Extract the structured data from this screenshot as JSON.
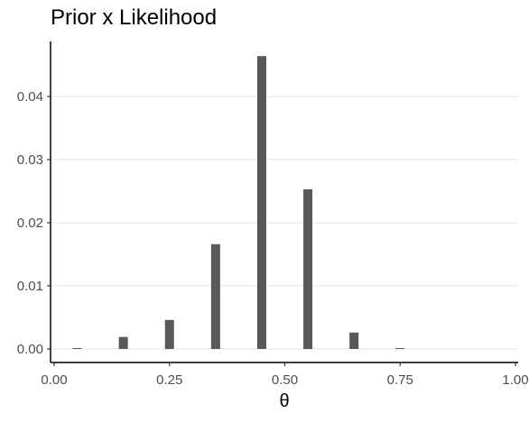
{
  "chart_data": {
    "type": "bar",
    "title": "Prior x Likelihood",
    "xlabel": "θ",
    "ylabel": "",
    "x": [
      0.05,
      0.15,
      0.25,
      0.35,
      0.45,
      0.55,
      0.65,
      0.75
    ],
    "values": [
      5e-05,
      0.0019,
      0.0046,
      0.0166,
      0.0464,
      0.0253,
      0.0026,
      5e-05
    ],
    "xlim": [
      0,
      1
    ],
    "ylim": [
      0,
      0.048
    ],
    "xticks": [
      0,
      0.25,
      0.5,
      0.75,
      1
    ],
    "xtick_labels": [
      "0.00",
      "0.25",
      "0.50",
      "0.75",
      "1.00"
    ],
    "yticks": [
      0,
      0.01,
      0.02,
      0.03,
      0.04
    ],
    "ytick_labels": [
      "0.00",
      "0.01",
      "0.02",
      "0.03",
      "0.04"
    ],
    "grid": "horizontal",
    "colors": {
      "bar": "#595959",
      "grid": "#ebebeb",
      "axis": "#000000"
    }
  }
}
